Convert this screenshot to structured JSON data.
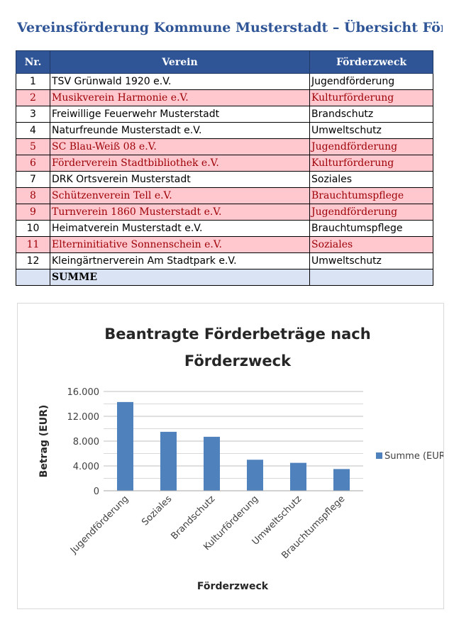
{
  "page": {
    "title": "Vereinsförderung Kommune Musterstadt – Übersicht Förderanträge"
  },
  "table": {
    "headers": [
      "Nr.",
      "Verein",
      "Förderzweck"
    ],
    "rows": [
      {
        "nr": "1",
        "verein": "TSV Grünwald 1920 e.V.",
        "zweck": "Jugendförderung",
        "highlight": false
      },
      {
        "nr": "2",
        "verein": "Musikverein Harmonie e.V.",
        "zweck": "Kulturförderung",
        "highlight": true
      },
      {
        "nr": "3",
        "verein": "Freiwillige Feuerwehr Musterstadt",
        "zweck": "Brandschutz",
        "highlight": false
      },
      {
        "nr": "4",
        "verein": "Naturfreunde Musterstadt e.V.",
        "zweck": "Umweltschutz",
        "highlight": false
      },
      {
        "nr": "5",
        "verein": "SC Blau-Weiß 08 e.V.",
        "zweck": "Jugendförderung",
        "highlight": true
      },
      {
        "nr": "6",
        "verein": "Förderverein Stadtbibliothek e.V.",
        "zweck": "Kulturförderung",
        "highlight": true
      },
      {
        "nr": "7",
        "verein": "DRK Ortsverein Musterstadt",
        "zweck": "Soziales",
        "highlight": false
      },
      {
        "nr": "8",
        "verein": "Schützenverein Tell e.V.",
        "zweck": "Brauchtumspflege",
        "highlight": true
      },
      {
        "nr": "9",
        "verein": "Turnverein 1860 Musterstadt e.V.",
        "zweck": "Jugendförderung",
        "highlight": true
      },
      {
        "nr": "10",
        "verein": "Heimatverein Musterstadt e.V.",
        "zweck": "Brauchtumspflege",
        "highlight": false
      },
      {
        "nr": "11",
        "verein": "Elterninitiative Sonnenschein e.V.",
        "zweck": "Soziales",
        "highlight": true
      },
      {
        "nr": "12",
        "verein": "Kleingärtnerverein Am Stadtpark e.V.",
        "zweck": "Umweltschutz",
        "highlight": false
      }
    ],
    "sum_label": "SUMME",
    "sum_value": "",
    "colors": {
      "header": "#2f5597",
      "highlight_bg": "#ffc7ce",
      "highlight_text": "#9c0006",
      "sum_bg": "#dae3f3"
    }
  },
  "chart_data": {
    "type": "bar",
    "title": "Beantragte Förderbeträge nach Förderzweck",
    "xlabel": "Förderzweck",
    "ylabel": "Betrag (EUR)",
    "categories": [
      "Jugendförderung",
      "Soziales",
      "Brandschutz",
      "Kulturförderung",
      "Umweltschutz",
      "Brauchtumspflege"
    ],
    "series": [
      {
        "name": "Summe (EUR)",
        "values": [
          14300,
          9500,
          8700,
          5000,
          4500,
          3500
        ],
        "color": "#4f81bd"
      }
    ],
    "ylim": [
      0,
      16000
    ],
    "yticks": [
      0,
      4000,
      8000,
      12000,
      16000
    ],
    "ytick_labels": [
      "0",
      "4.000",
      "8.000",
      "12.000",
      "16.000"
    ],
    "grid": true,
    "legend": "right"
  }
}
